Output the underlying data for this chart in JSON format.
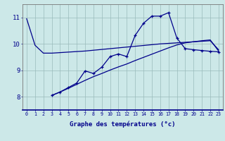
{
  "xlabel": "Graphe des températures (°c)",
  "xlim": [
    -0.5,
    23.5
  ],
  "ylim": [
    7.5,
    11.5
  ],
  "yticks": [
    8,
    9,
    10,
    11
  ],
  "xticks": [
    0,
    1,
    2,
    3,
    4,
    5,
    6,
    7,
    8,
    9,
    10,
    11,
    12,
    13,
    14,
    15,
    16,
    17,
    18,
    19,
    20,
    21,
    22,
    23
  ],
  "bg_color": "#cce8e8",
  "line_color": "#00008b",
  "grid_color": "#99bbbb",
  "line1_x": [
    0,
    1,
    2,
    3,
    4,
    5,
    6,
    7,
    8,
    9,
    10,
    11,
    12,
    13,
    14,
    15,
    16,
    17,
    18,
    19,
    20,
    21,
    22,
    23
  ],
  "line1_y": [
    10.95,
    9.95,
    9.65,
    9.65,
    9.67,
    9.69,
    9.71,
    9.73,
    9.76,
    9.79,
    9.82,
    9.85,
    9.88,
    9.91,
    9.94,
    9.97,
    10.0,
    10.02,
    10.04,
    10.06,
    10.08,
    10.1,
    10.12,
    9.78
  ],
  "line2_x": [
    3,
    4,
    5,
    6,
    7,
    8,
    9,
    10,
    11,
    12,
    13,
    14,
    15,
    16,
    17,
    18,
    19,
    20,
    21,
    22,
    23
  ],
  "line2_y": [
    8.05,
    8.18,
    8.35,
    8.52,
    8.98,
    8.88,
    9.12,
    9.52,
    9.62,
    9.52,
    10.32,
    10.78,
    11.05,
    11.05,
    11.18,
    10.22,
    9.82,
    9.78,
    9.75,
    9.72,
    9.7
  ],
  "line3_x": [
    3,
    4,
    5,
    6,
    7,
    8,
    9,
    10,
    11,
    12,
    13,
    14,
    15,
    16,
    17,
    18,
    19,
    20,
    21,
    22,
    23
  ],
  "line3_y": [
    8.05,
    8.18,
    8.32,
    8.47,
    8.62,
    8.76,
    8.88,
    9.01,
    9.13,
    9.24,
    9.37,
    9.49,
    9.61,
    9.73,
    9.85,
    9.96,
    10.04,
    10.08,
    10.12,
    10.15,
    9.73
  ],
  "xlabel_fontsize": 6.5,
  "xtick_fontsize": 4.8,
  "ytick_fontsize": 6.5
}
